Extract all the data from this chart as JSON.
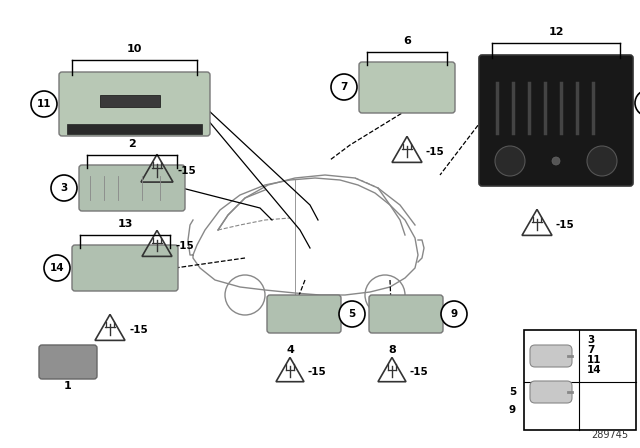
{
  "bg_color": "#ffffff",
  "diagram_number": "289745",
  "colors": {
    "light_component": "#b8c8b8",
    "dark_component": "#1a1a1a",
    "gray_component": "#909090",
    "bracket_line": "#000000",
    "warn_color": "#444444",
    "car_outline": "#888888",
    "component_border": "#777777",
    "text_color": "#000000",
    "bulb_color": "#c8c8c8",
    "white": "#ffffff"
  },
  "layout": {
    "figw": 6.4,
    "figh": 4.48,
    "dpi": 100
  }
}
